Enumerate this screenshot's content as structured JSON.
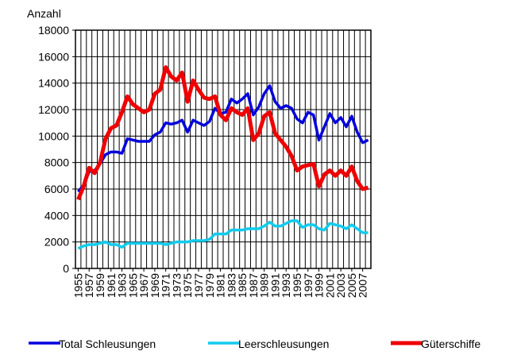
{
  "chart_data": {
    "type": "line",
    "ylabel": "Anzahl",
    "x": [
      1955,
      1956,
      1957,
      1958,
      1959,
      1960,
      1961,
      1962,
      1963,
      1964,
      1965,
      1966,
      1967,
      1968,
      1969,
      1970,
      1971,
      1972,
      1973,
      1974,
      1975,
      1976,
      1977,
      1978,
      1979,
      1980,
      1981,
      1982,
      1983,
      1984,
      1985,
      1986,
      1987,
      1988,
      1989,
      1990,
      1991,
      1992,
      1993,
      1994,
      1995,
      1996,
      1997,
      1998,
      1999,
      2000,
      2001,
      2002,
      2003,
      2004,
      2005,
      2006,
      2007,
      2008
    ],
    "xlim": [
      1954.5,
      2008.5
    ],
    "xticks": [
      1955,
      1957,
      1959,
      1961,
      1963,
      1965,
      1967,
      1969,
      1971,
      1973,
      1975,
      1977,
      1979,
      1981,
      1983,
      1985,
      1987,
      1989,
      1991,
      1993,
      1995,
      1997,
      1999,
      2001,
      2003,
      2005,
      2007
    ],
    "ylim": [
      0,
      18000
    ],
    "yticks": [
      0,
      2000,
      4000,
      6000,
      8000,
      10000,
      12000,
      14000,
      16000,
      18000
    ],
    "grid": true,
    "legend": "bottom",
    "series": [
      {
        "name": "Total Schleusungen",
        "color": "#0000dd",
        "values": [
          5800,
          6300,
          7300,
          7400,
          7900,
          8600,
          8800,
          8800,
          8700,
          9800,
          9700,
          9600,
          9600,
          9600,
          10100,
          10300,
          11000,
          10900,
          11000,
          11200,
          10300,
          11200,
          11000,
          10800,
          11100,
          12100,
          11700,
          11800,
          12800,
          12500,
          12800,
          13200,
          11600,
          12200,
          13200,
          13800,
          12600,
          12100,
          12300,
          12100,
          11300,
          11000,
          11800,
          11600,
          9700,
          10700,
          11700,
          11000,
          11400,
          10700,
          11500,
          10300,
          9500,
          9700
        ]
      },
      {
        "name": "Leerschleusungen",
        "color": "#11ccee",
        "values": [
          1500,
          1700,
          1800,
          1800,
          1900,
          2000,
          1800,
          1800,
          1600,
          1900,
          1900,
          1900,
          1900,
          1900,
          1900,
          1900,
          1800,
          1900,
          2000,
          2000,
          2000,
          2100,
          2100,
          2100,
          2200,
          2600,
          2600,
          2600,
          2900,
          2900,
          2900,
          3000,
          3000,
          3000,
          3200,
          3500,
          3200,
          3200,
          3400,
          3600,
          3600,
          3100,
          3300,
          3300,
          3000,
          2900,
          3400,
          3300,
          3200,
          3000,
          3300,
          3000,
          2700,
          2700
        ]
      },
      {
        "name": "Güterschiffe",
        "color": "#ee0000",
        "values": [
          5200,
          6200,
          7600,
          7200,
          8000,
          9800,
          10600,
          10800,
          11800,
          13000,
          12400,
          12100,
          11800,
          12000,
          13200,
          13500,
          15200,
          14500,
          14200,
          14800,
          12600,
          14200,
          13500,
          12900,
          12800,
          13000,
          11600,
          11200,
          12100,
          11800,
          11600,
          12100,
          9700,
          10200,
          11500,
          11800,
          10200,
          9700,
          9200,
          8500,
          7400,
          7700,
          7800,
          7900,
          6200,
          7100,
          7400,
          7000,
          7400,
          7000,
          7700,
          6600,
          6000,
          6100
        ]
      }
    ]
  }
}
